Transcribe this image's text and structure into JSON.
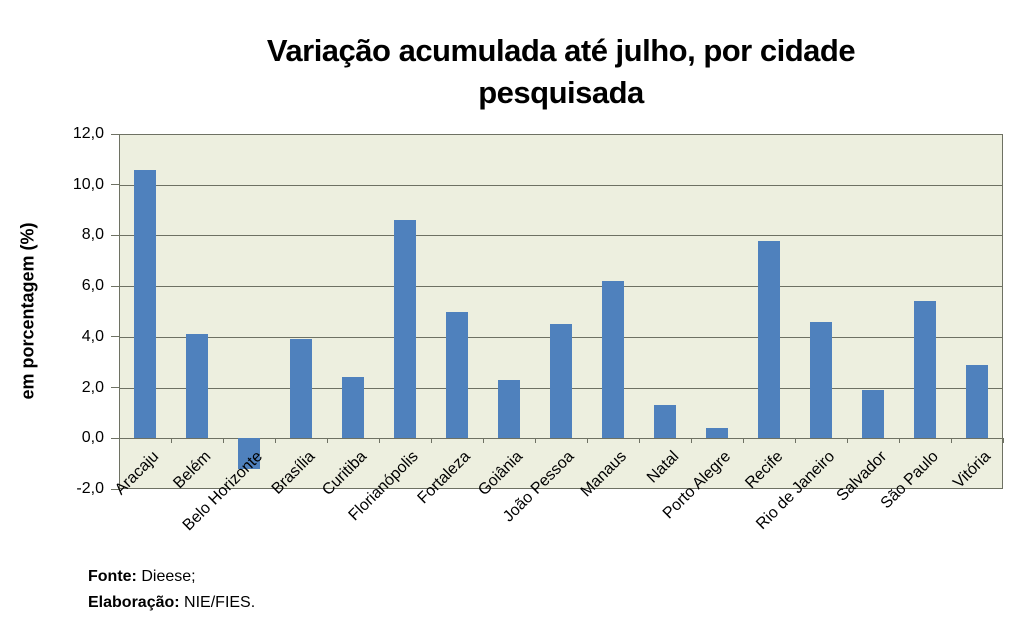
{
  "chart_data": {
    "type": "bar",
    "title": "Variação acumulada até julho, por cidade pesquisada",
    "title_lines": [
      "Variação acumulada até julho, por cidade",
      "pesquisada"
    ],
    "ylabel": "em porcentagem (%)",
    "xlabel": "",
    "categories": [
      "Aracaju",
      "Belém",
      "Belo Horizonte",
      "Brasília",
      "Curitiba",
      "Florianópolis",
      "Fortaleza",
      "Goiânia",
      "João Pessoa",
      "Manaus",
      "Natal",
      "Porto Alegre",
      "Recife",
      "Rio de Janeiro",
      "Salvador",
      "São Paulo",
      "Vitória"
    ],
    "values": [
      10.6,
      4.1,
      -1.2,
      3.9,
      2.4,
      8.6,
      5.0,
      2.3,
      4.5,
      6.2,
      1.3,
      0.4,
      7.8,
      4.6,
      1.9,
      5.4,
      2.9
    ],
    "ylim": [
      -2,
      12
    ],
    "ytick_values": [
      12,
      10,
      8,
      6,
      4,
      2,
      0,
      -2
    ],
    "ytick_labels": [
      "12,0",
      "10,0",
      "8,0",
      "6,0",
      "4,0",
      "2,0",
      "0,0",
      "-2,0"
    ],
    "decimal_separator": ",",
    "grid": true,
    "legend": false,
    "bar_color": "#4F81BD",
    "plot_bg": "#EDEFDF",
    "grid_color": "#6E7163",
    "text_color": "#000000"
  },
  "footer": {
    "fonte_label": "Fonte:",
    "fonte_value": "Dieese;",
    "elaboracao_label": "Elaboração:",
    "elaboracao_value": "NIE/FIES."
  }
}
